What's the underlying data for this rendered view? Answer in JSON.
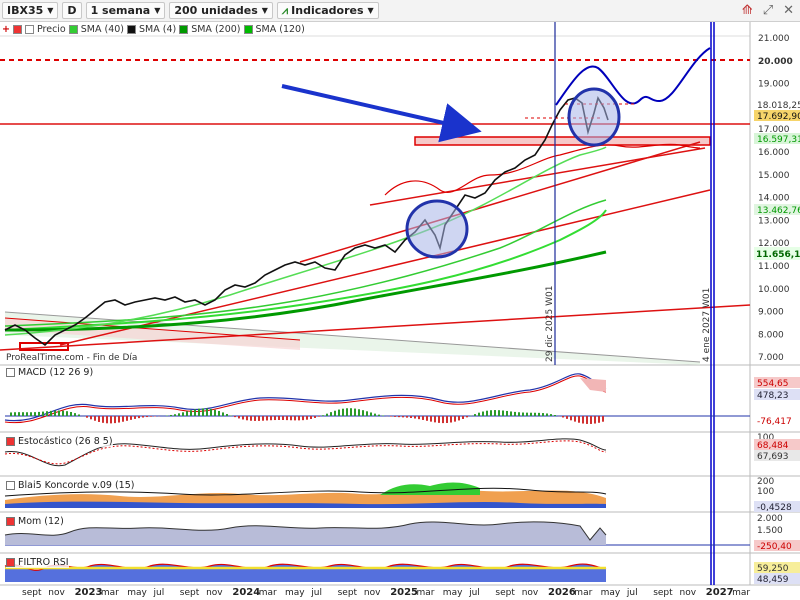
{
  "toolbar": {
    "symbol": "IBX35",
    "period_d": "D",
    "timeframe": "1 semana",
    "units": "200 unidades",
    "indicators": "Indicadores"
  },
  "legend": {
    "price": "Precio",
    "sma40": "SMA (40)",
    "sma4": "SMA (4)",
    "sma200": "SMA (200)",
    "sma120": "SMA (120)"
  },
  "watermark": "ProRealTime.com - Fin de Día",
  "price_axis": [
    "21.000",
    "20.000",
    "19.000",
    "18.000",
    "17.000",
    "16.000",
    "15.000",
    "14.000",
    "13.000",
    "12.000",
    "11.000",
    "10.000",
    "9.000",
    "8.000",
    "7.000"
  ],
  "price_tags": {
    "t1": "18.018,25",
    "t2": "17.692,90",
    "t3": "16.597,31",
    "t4": "13.462,76",
    "t5": "11.656,1"
  },
  "vertical_lines": {
    "v1": "29 dic 2025 W01",
    "v2": "4 ene 2027 W01"
  },
  "panes": {
    "macd": {
      "label": "MACD (12 26 9)",
      "v1": "554,65",
      "v2": "478,23",
      "v3": "-76,417"
    },
    "stoch": {
      "label": "Estocástico (26 8 5)",
      "v0": "100",
      "v1": "68,484",
      "v2": "67,693"
    },
    "blai5": {
      "label": "Blai5 Koncorde v.09 (15)",
      "v0": "200",
      "v1": "100",
      "v2": "-0,4528"
    },
    "mom": {
      "label": "Mom (12)",
      "v0": "2.000",
      "v1": "1.500",
      "v2": "-250,40"
    },
    "rsi": {
      "label": "FILTRO RSI",
      "v1": "59,250",
      "v2": "48,459"
    }
  },
  "x_axis": [
    {
      "t": "sept",
      "year": false
    },
    {
      "t": "nov",
      "year": false
    },
    {
      "t": "2023",
      "year": true
    },
    {
      "t": "mar",
      "year": false
    },
    {
      "t": "may",
      "year": false
    },
    {
      "t": "jul",
      "year": false
    },
    {
      "t": "sept",
      "year": false
    },
    {
      "t": "nov",
      "year": false
    },
    {
      "t": "2024",
      "year": true
    },
    {
      "t": "mar",
      "year": false
    },
    {
      "t": "may",
      "year": false
    },
    {
      "t": "jul",
      "year": false
    },
    {
      "t": "sept",
      "year": false
    },
    {
      "t": "nov",
      "year": false
    },
    {
      "t": "2025",
      "year": true
    },
    {
      "t": "mar",
      "year": false
    },
    {
      "t": "may",
      "year": false
    },
    {
      "t": "jul",
      "year": false
    },
    {
      "t": "sept",
      "year": false
    },
    {
      "t": "nov",
      "year": false
    },
    {
      "t": "2026",
      "year": true
    },
    {
      "t": "mar",
      "year": false
    },
    {
      "t": "may",
      "year": false
    },
    {
      "t": "jul",
      "year": false
    },
    {
      "t": "sept",
      "year": false
    },
    {
      "t": "nov",
      "year": false
    },
    {
      "t": "2027",
      "year": true
    },
    {
      "t": "mar",
      "year": false
    }
  ],
  "colors": {
    "price": "#111111",
    "sma4": "#d00000",
    "sma40": "#33cc33",
    "sma120": "#00bb00",
    "sma200": "#009900",
    "projection": "#0000cc",
    "arrow": "#1a33cc",
    "trend": "#dd1111",
    "accent_blue": "#2233aa"
  }
}
